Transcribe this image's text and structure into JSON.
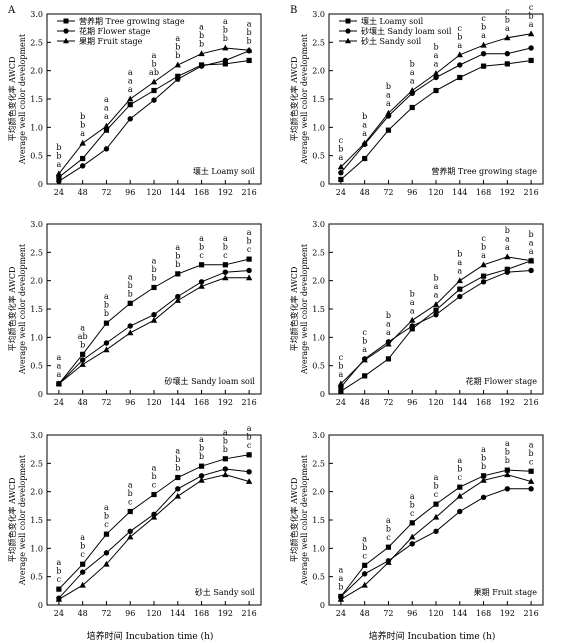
{
  "figure": {
    "panel_labels": [
      "A",
      "B"
    ],
    "ylabel_cn": "平均颜色变化率 AWCD",
    "ylabel_en": "Average well color development",
    "xlabel": "培养时间 Incubation time (h)",
    "x_ticks": [
      24,
      48,
      72,
      96,
      120,
      144,
      168,
      192,
      216
    ],
    "y_ticks": [
      "0",
      "0.5",
      "1.0",
      "1.5",
      "2.0",
      "2.5",
      "3.0"
    ]
  },
  "chart_data": [
    {
      "type": "line",
      "title": "壤土 Loamy soil",
      "x": [
        24,
        48,
        72,
        96,
        120,
        144,
        168,
        192,
        216
      ],
      "ylim": [
        0,
        3
      ],
      "series": [
        {
          "name": "营养期 Tree growing stage",
          "marker": "square",
          "values": [
            0.12,
            0.45,
            0.95,
            1.4,
            1.65,
            1.9,
            2.1,
            2.12,
            2.18
          ]
        },
        {
          "name": "花期 Flower stage",
          "marker": "circle",
          "values": [
            0.05,
            0.32,
            0.62,
            1.15,
            1.48,
            1.85,
            2.08,
            2.18,
            2.35
          ]
        },
        {
          "name": "果期 Fruit stage",
          "marker": "triangle",
          "values": [
            0.18,
            0.72,
            1.02,
            1.5,
            1.8,
            2.1,
            2.3,
            2.4,
            2.36
          ]
        }
      ],
      "letters": [
        [
          "b",
          "b",
          "a"
        ],
        [
          "b",
          "b",
          "a"
        ],
        [
          "a",
          "a",
          "a"
        ],
        [
          "a",
          "a",
          "a"
        ],
        [
          "a",
          "b",
          "ab"
        ],
        [
          "a",
          "b",
          "b"
        ],
        [
          "a",
          "b",
          "b"
        ],
        [
          "a",
          "b",
          "b"
        ],
        [
          "a",
          "b",
          "b"
        ]
      ]
    },
    {
      "type": "line",
      "title": "营养期 Tree growing stage",
      "x": [
        24,
        48,
        72,
        96,
        120,
        144,
        168,
        192,
        216
      ],
      "ylim": [
        0,
        3
      ],
      "series": [
        {
          "name": "壤土 Loamy soil",
          "marker": "square",
          "values": [
            0.08,
            0.45,
            0.95,
            1.35,
            1.65,
            1.88,
            2.08,
            2.12,
            2.18
          ]
        },
        {
          "name": "砂壤土 Sandy loam soil",
          "marker": "circle",
          "values": [
            0.2,
            0.7,
            1.2,
            1.6,
            1.88,
            2.1,
            2.3,
            2.3,
            2.4
          ]
        },
        {
          "name": "砂土 Sandy soil",
          "marker": "triangle",
          "values": [
            0.3,
            0.72,
            1.25,
            1.65,
            1.95,
            2.28,
            2.45,
            2.58,
            2.65
          ]
        }
      ],
      "letters": [
        [
          "c",
          "b",
          "a"
        ],
        [
          "b",
          "a",
          "a"
        ],
        [
          "b",
          "a",
          "a"
        ],
        [
          "b",
          "a",
          "a"
        ],
        [
          "b",
          "a",
          "a"
        ],
        [
          "c",
          "b",
          "a"
        ],
        [
          "c",
          "b",
          "a"
        ],
        [
          "c",
          "b",
          "a"
        ],
        [
          "c",
          "b",
          "a"
        ]
      ]
    },
    {
      "type": "line",
      "title": "砂壤土 Sandy loam soil",
      "x": [
        24,
        48,
        72,
        96,
        120,
        144,
        168,
        192,
        216
      ],
      "ylim": [
        0,
        3
      ],
      "series": [
        {
          "name": "营养期 Tree growing stage",
          "marker": "square",
          "values": [
            0.18,
            0.7,
            1.25,
            1.6,
            1.88,
            2.12,
            2.28,
            2.28,
            2.38
          ]
        },
        {
          "name": "花期 Flower stage",
          "marker": "circle",
          "values": [
            0.18,
            0.6,
            0.9,
            1.2,
            1.4,
            1.72,
            1.98,
            2.15,
            2.18
          ]
        },
        {
          "name": "果期 Fruit stage",
          "marker": "triangle",
          "values": [
            0.18,
            0.52,
            0.78,
            1.08,
            1.3,
            1.65,
            1.9,
            2.05,
            2.05
          ]
        }
      ],
      "letters": [
        [
          "a",
          "a",
          "a"
        ],
        [
          "a",
          "ab",
          "b"
        ],
        [
          "a",
          "b",
          "b"
        ],
        [
          "a",
          "b",
          "b"
        ],
        [
          "a",
          "b",
          "b"
        ],
        [
          "a",
          "b",
          "b"
        ],
        [
          "a",
          "b",
          "c"
        ],
        [
          "a",
          "b",
          "c"
        ],
        [
          "a",
          "b",
          "c"
        ]
      ]
    },
    {
      "type": "line",
      "title": "花期 Flower stage",
      "x": [
        24,
        48,
        72,
        96,
        120,
        144,
        168,
        192,
        216
      ],
      "ylim": [
        0,
        3
      ],
      "series": [
        {
          "name": "壤土 Loamy soil",
          "marker": "square",
          "values": [
            0.05,
            0.32,
            0.62,
            1.15,
            1.48,
            1.85,
            2.08,
            2.2,
            2.35
          ]
        },
        {
          "name": "砂壤土 Sandy loam soil",
          "marker": "circle",
          "values": [
            0.12,
            0.62,
            0.92,
            1.2,
            1.4,
            1.72,
            1.98,
            2.15,
            2.18
          ]
        },
        {
          "name": "砂土 Sandy soil",
          "marker": "triangle",
          "values": [
            0.18,
            0.6,
            0.88,
            1.3,
            1.58,
            2.0,
            2.28,
            2.42,
            2.35
          ]
        }
      ],
      "letters": [
        [
          "c",
          "b",
          "a"
        ],
        [
          "c",
          "b",
          "a"
        ],
        [
          "b",
          "a",
          "a"
        ],
        [
          "b",
          "a",
          "a"
        ],
        [
          "b",
          "a",
          "a"
        ],
        [
          "b",
          "a",
          "a"
        ],
        [
          "c",
          "b",
          "a"
        ],
        [
          "b",
          "a",
          "a"
        ],
        [
          "b",
          "a",
          "a"
        ]
      ]
    },
    {
      "type": "line",
      "title": "砂土 Sandy soil",
      "x": [
        24,
        48,
        72,
        96,
        120,
        144,
        168,
        192,
        216
      ],
      "ylim": [
        0,
        3
      ],
      "series": [
        {
          "name": "营养期 Tree growing stage",
          "marker": "square",
          "values": [
            0.28,
            0.72,
            1.25,
            1.65,
            1.95,
            2.25,
            2.45,
            2.58,
            2.65
          ]
        },
        {
          "name": "花期 Flower stage",
          "marker": "circle",
          "values": [
            0.12,
            0.58,
            0.92,
            1.3,
            1.6,
            2.05,
            2.28,
            2.4,
            2.35
          ]
        },
        {
          "name": "果期 Fruit stage",
          "marker": "triangle",
          "values": [
            0.1,
            0.35,
            0.72,
            1.2,
            1.55,
            1.92,
            2.2,
            2.3,
            2.18
          ]
        }
      ],
      "letters": [
        [
          "a",
          "b",
          "c"
        ],
        [
          "a",
          "b",
          "c"
        ],
        [
          "a",
          "b",
          "c"
        ],
        [
          "a",
          "b",
          "c"
        ],
        [
          "a",
          "b",
          "c"
        ],
        [
          "a",
          "b",
          "b"
        ],
        [
          "a",
          "b",
          "b"
        ],
        [
          "a",
          "b",
          "b"
        ],
        [
          "a",
          "b",
          "c"
        ]
      ]
    },
    {
      "type": "line",
      "title": "果期 Fruit stage",
      "x": [
        24,
        48,
        72,
        96,
        120,
        144,
        168,
        192,
        216
      ],
      "ylim": [
        0,
        3
      ],
      "series": [
        {
          "name": "壤土 Loamy soil",
          "marker": "square",
          "values": [
            0.15,
            0.7,
            1.02,
            1.45,
            1.78,
            2.08,
            2.28,
            2.38,
            2.36
          ]
        },
        {
          "name": "砂壤土 Sandy loam soil",
          "marker": "circle",
          "values": [
            0.15,
            0.55,
            0.78,
            1.08,
            1.3,
            1.65,
            1.9,
            2.05,
            2.05
          ]
        },
        {
          "name": "砂土 Sandy soil",
          "marker": "triangle",
          "values": [
            0.1,
            0.35,
            0.75,
            1.2,
            1.55,
            1.92,
            2.2,
            2.3,
            2.18
          ]
        }
      ],
      "letters": [
        [
          "a",
          "a",
          "b"
        ],
        [
          "a",
          "b",
          "c"
        ],
        [
          "a",
          "b",
          "c"
        ],
        [
          "a",
          "b",
          "c"
        ],
        [
          "a",
          "b",
          "c"
        ],
        [
          "a",
          "b",
          "c"
        ],
        [
          "a",
          "b",
          "b"
        ],
        [
          "a",
          "b",
          "b"
        ],
        [
          "a",
          "b",
          "c"
        ]
      ]
    }
  ]
}
